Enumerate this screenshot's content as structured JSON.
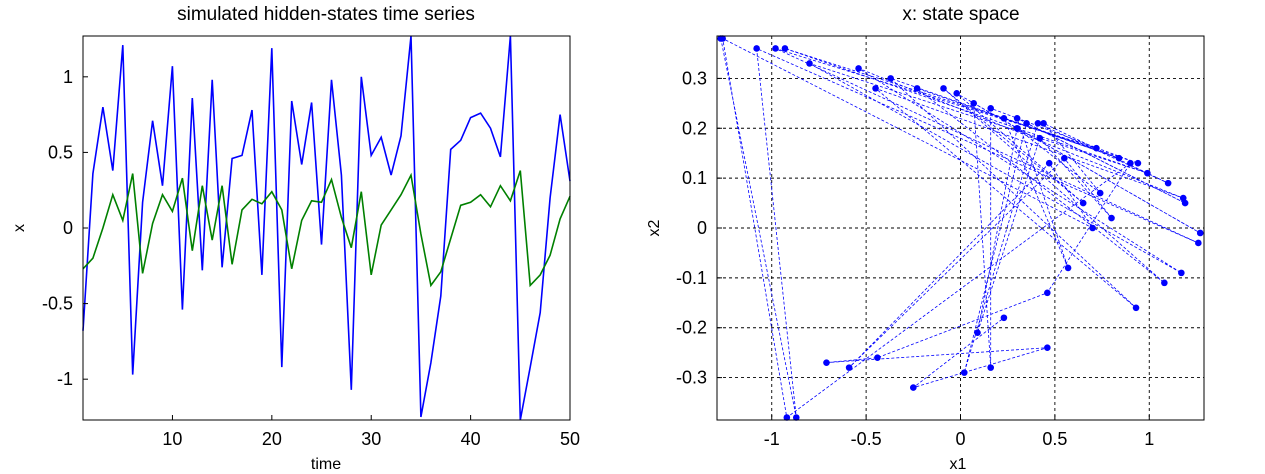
{
  "chart_data": [
    {
      "type": "line",
      "title": "simulated hidden-states time series",
      "xlabel": "time",
      "ylabel": "x",
      "xlim": [
        1,
        50
      ],
      "ylim": [
        -1.27,
        1.27
      ],
      "xticks": [
        10,
        20,
        30,
        40,
        50
      ],
      "yticks": [
        -1,
        -0.5,
        0,
        0.5,
        1
      ],
      "xtick_labels": [
        "10",
        "20",
        "30",
        "40",
        "50"
      ],
      "ytick_labels": [
        "-1",
        "-0.5",
        "0",
        "0.5",
        "1"
      ],
      "grid": false,
      "x": [
        1,
        2,
        3,
        4,
        5,
        6,
        7,
        8,
        9,
        10,
        11,
        12,
        13,
        14,
        15,
        16,
        17,
        18,
        19,
        20,
        21,
        22,
        23,
        24,
        25,
        26,
        27,
        28,
        29,
        30,
        31,
        32,
        33,
        34,
        35,
        36,
        37,
        38,
        39,
        40,
        41,
        42,
        43,
        44,
        45,
        46,
        47,
        48,
        49,
        50
      ],
      "series": [
        {
          "color": "#0000ff",
          "values": [
            -0.68,
            0.36,
            0.8,
            0.38,
            1.21,
            -0.97,
            0.17,
            0.71,
            0.28,
            1.07,
            -0.54,
            0.86,
            -0.28,
            0.98,
            -0.26,
            0.46,
            0.48,
            0.78,
            -0.31,
            1.19,
            -0.92,
            0.84,
            0.42,
            0.83,
            -0.11,
            0.98,
            0.35,
            -1.07,
            1.0,
            0.48,
            0.6,
            0.35,
            0.61,
            1.27,
            -1.25,
            -0.89,
            -0.45,
            0.52,
            0.58,
            0.73,
            0.76,
            0.66,
            0.47,
            1.27,
            -1.27,
            -0.92,
            -0.56,
            0.2,
            0.75,
            0.31
          ]
        },
        {
          "color": "#008000",
          "values": [
            -0.27,
            -0.2,
            0.0,
            0.22,
            0.05,
            0.36,
            -0.3,
            0.03,
            0.22,
            0.11,
            0.33,
            -0.15,
            0.28,
            -0.08,
            0.28,
            -0.24,
            0.12,
            0.19,
            0.16,
            0.24,
            0.12,
            -0.27,
            0.05,
            0.18,
            0.17,
            0.32,
            0.07,
            -0.13,
            0.24,
            -0.31,
            0.02,
            0.12,
            0.22,
            0.35,
            -0.04,
            -0.38,
            -0.29,
            -0.07,
            0.15,
            0.17,
            0.22,
            0.14,
            0.28,
            0.18,
            0.38,
            -0.38,
            -0.31,
            -0.18,
            0.06,
            0.21
          ]
        }
      ]
    },
    {
      "type": "scatter",
      "title": "x: state space",
      "xlabel": "x1",
      "ylabel": "x2",
      "xlim": [
        -1.29,
        1.29
      ],
      "ylim": [
        -0.385,
        0.385
      ],
      "xticks": [
        -1,
        -0.5,
        0,
        0.5,
        1
      ],
      "yticks": [
        -0.3,
        -0.2,
        -0.1,
        0,
        0.1,
        0.2,
        0.3
      ],
      "xtick_labels": [
        "-1",
        "-0.5",
        "0",
        "0.5",
        "1"
      ],
      "ytick_labels": [
        "-0.3",
        "-0.2",
        "-0.1",
        "0",
        "0.1",
        "0.2",
        "0.3"
      ],
      "grid": true,
      "line_style": "dashed",
      "color": "#0000ff",
      "points": [
        [
          -1.27,
          0.38
        ],
        [
          -1.26,
          0.38
        ],
        [
          -1.08,
          0.36
        ],
        [
          -0.98,
          0.36
        ],
        [
          -0.93,
          0.36
        ],
        [
          -0.8,
          0.33
        ],
        [
          -0.54,
          0.32
        ],
        [
          -0.45,
          0.28
        ],
        [
          -0.37,
          0.3
        ],
        [
          -0.23,
          0.28
        ],
        [
          -0.09,
          0.28
        ],
        [
          -0.02,
          0.27
        ],
        [
          0.07,
          0.25
        ],
        [
          0.16,
          0.24
        ],
        [
          0.23,
          0.22
        ],
        [
          0.3,
          0.22
        ],
        [
          0.35,
          0.21
        ],
        [
          0.41,
          0.21
        ],
        [
          0.44,
          0.21
        ],
        [
          0.3,
          0.2
        ],
        [
          0.42,
          0.18
        ],
        [
          0.55,
          0.14
        ],
        [
          0.47,
          0.13
        ],
        [
          0.72,
          0.16
        ],
        [
          0.84,
          0.14
        ],
        [
          0.9,
          0.13
        ],
        [
          0.94,
          0.13
        ],
        [
          0.99,
          0.11
        ],
        [
          1.1,
          0.09
        ],
        [
          1.18,
          0.06
        ],
        [
          1.19,
          0.05
        ],
        [
          0.74,
          0.07
        ],
        [
          0.8,
          0.02
        ],
        [
          0.65,
          0.05
        ],
        [
          0.7,
          0.0
        ],
        [
          1.27,
          -0.01
        ],
        [
          1.26,
          -0.03
        ],
        [
          1.17,
          -0.09
        ],
        [
          1.08,
          -0.11
        ],
        [
          0.93,
          -0.16
        ],
        [
          0.57,
          -0.08
        ],
        [
          0.46,
          -0.13
        ],
        [
          0.46,
          -0.24
        ],
        [
          0.23,
          -0.18
        ],
        [
          0.16,
          -0.28
        ],
        [
          0.09,
          -0.21
        ],
        [
          0.02,
          -0.29
        ],
        [
          -0.44,
          -0.26
        ],
        [
          -0.59,
          -0.28
        ],
        [
          -0.71,
          -0.27
        ],
        [
          -0.25,
          -0.32
        ],
        [
          -0.87,
          -0.38
        ],
        [
          -0.92,
          -0.38
        ]
      ],
      "path_order": [
        0,
        51,
        2,
        36,
        3,
        23,
        4,
        27,
        5,
        37,
        6,
        29,
        7,
        39,
        8,
        24,
        9,
        38,
        10,
        33,
        11,
        35,
        12,
        44,
        13,
        26,
        14,
        40,
        15,
        30,
        16,
        46,
        17,
        28,
        18,
        31,
        19,
        45,
        20,
        32,
        21,
        48,
        22,
        34,
        1,
        52,
        25,
        41,
        47,
        49,
        42,
        50,
        43
      ]
    }
  ]
}
